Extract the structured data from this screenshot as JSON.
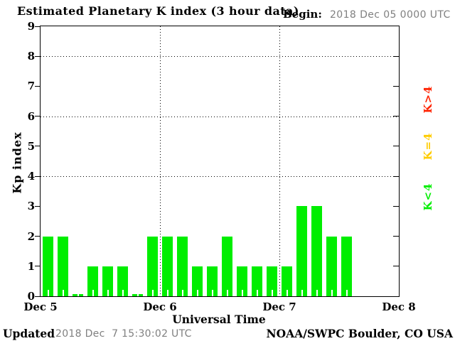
{
  "title": "Estimated Planetary K index (3 hour data)",
  "begin": {
    "label": "Begin:",
    "value": "2018 Dec 05 0000 UTC"
  },
  "footer": {
    "updated_label": "Updated",
    "updated_value": "2018 Dec  7 15:30:02 UTC",
    "credit": "NOAA/SWPC Boulder, CO USA"
  },
  "chart_data": {
    "type": "bar",
    "title": "Estimated Planetary K index (3 hour data)",
    "xlabel": "Universal Time",
    "ylabel": "Kp index",
    "ylim": [
      0,
      9
    ],
    "yticks": [
      0,
      1,
      2,
      3,
      4,
      5,
      6,
      7,
      8,
      9
    ],
    "grid_y": [
      4,
      6,
      8
    ],
    "grid_style": "dotted",
    "x_day_labels": [
      "Dec 5",
      "Dec 6",
      "Dec 7",
      "Dec 8"
    ],
    "bars_per_day": 8,
    "hours_per_bar": 3,
    "begin_utc": "2018 Dec 05 0000 UTC",
    "values": [
      2,
      2,
      0,
      1,
      1,
      1,
      0,
      2,
      2,
      2,
      1,
      1,
      2,
      1,
      1,
      1,
      1,
      3,
      3,
      2,
      2,
      null,
      null,
      null
    ],
    "bar_color": "#00ee00",
    "legend_position": "right-rotated",
    "legend": [
      {
        "label": "K>4",
        "color": "#ff2200"
      },
      {
        "label": "K=4",
        "color": "#ffcc00"
      },
      {
        "label": "K<4",
        "color": "#00ee00"
      }
    ]
  },
  "colors": {
    "background": "#ffffff",
    "text": "#000000",
    "muted_text": "#808080",
    "bar_green": "#00ee00",
    "legend_red": "#ff2200",
    "legend_yellow": "#ffcc00",
    "legend_green": "#00ee00"
  }
}
